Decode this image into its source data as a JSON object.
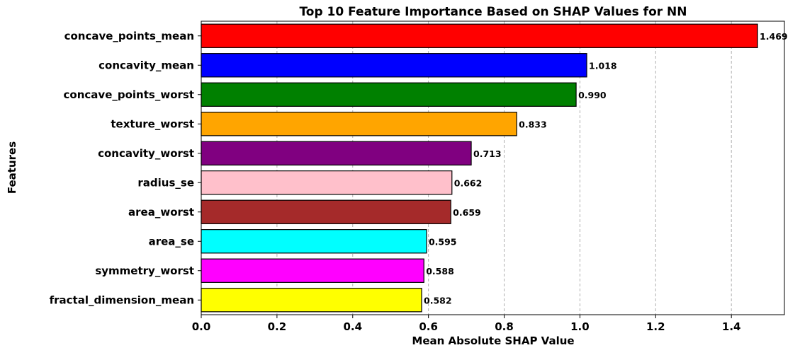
{
  "chart_data": {
    "type": "bar",
    "orientation": "horizontal",
    "title": "Top 10 Feature Importance Based on SHAP Values for NN",
    "xlabel": "Mean Absolute SHAP Value",
    "ylabel": "Features",
    "xlim": [
      0,
      1.54
    ],
    "xticks": [
      "0.0",
      "0.2",
      "0.4",
      "0.6",
      "0.8",
      "1.0",
      "1.2",
      "1.4"
    ],
    "grid": "x-dashed",
    "categories": [
      "concave_points_mean",
      "concavity_mean",
      "concave_points_worst",
      "texture_worst",
      "concavity_worst",
      "radius_se",
      "area_worst",
      "area_se",
      "symmetry_worst",
      "fractal_dimension_mean"
    ],
    "values": [
      1.469,
      1.018,
      0.99,
      0.833,
      0.713,
      0.662,
      0.659,
      0.595,
      0.588,
      0.582
    ],
    "value_labels": [
      "1.469",
      "1.018",
      "0.990",
      "0.833",
      "0.713",
      "0.662",
      "0.659",
      "0.595",
      "0.588",
      "0.582"
    ],
    "colors": [
      "#ff0000",
      "#0000ff",
      "#008000",
      "#ffa500",
      "#800080",
      "#ffc0cb",
      "#a52a2a",
      "#00ffff",
      "#ff00ff",
      "#ffff00"
    ]
  }
}
